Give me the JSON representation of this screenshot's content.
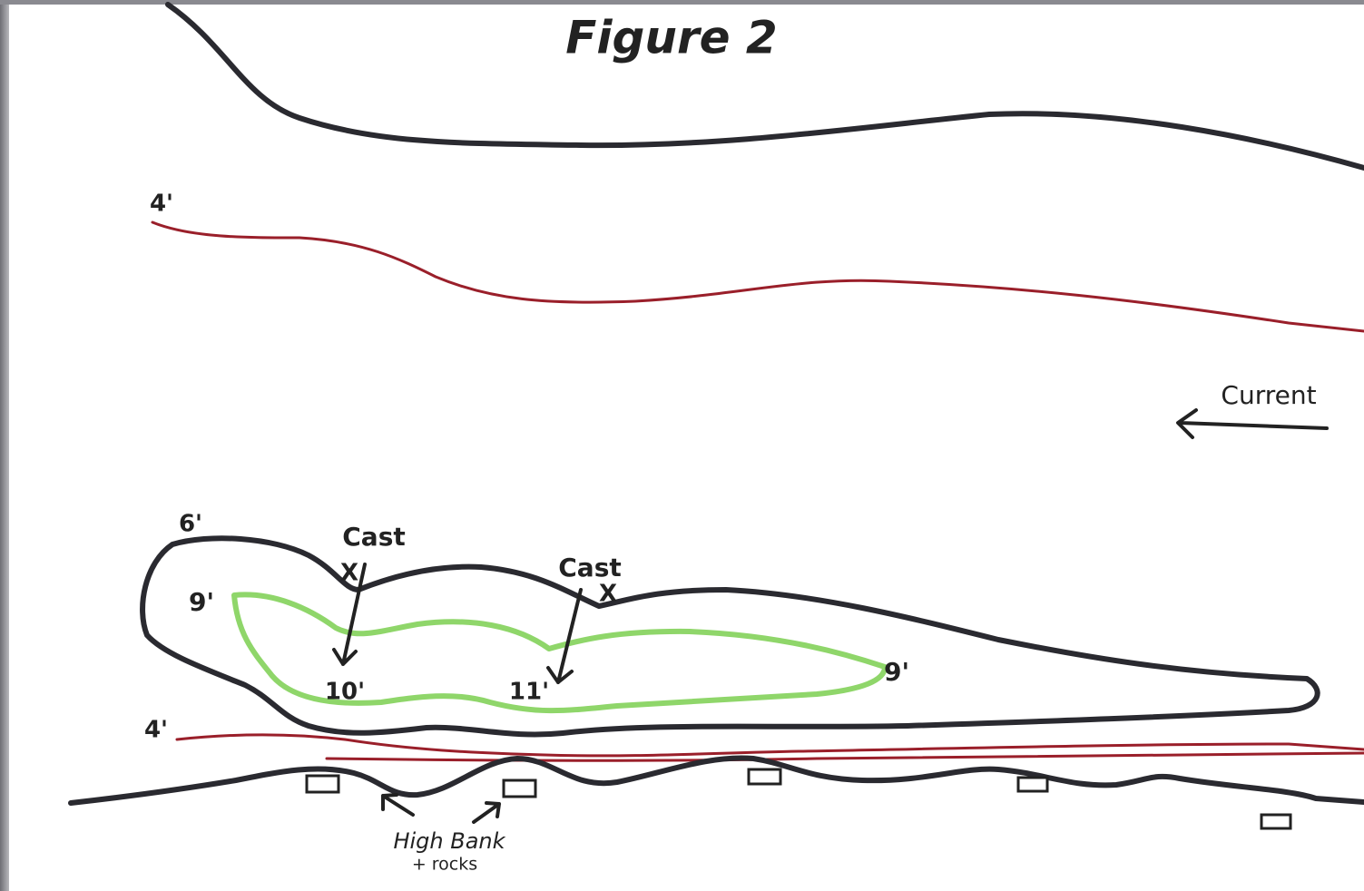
{
  "title": "Figure 2",
  "depth_labels": [
    "4'",
    "4'",
    "6'",
    "9'",
    "9'",
    "10'",
    "11'"
  ],
  "casts": [
    {
      "label": "Cast",
      "mark": "X"
    },
    {
      "label": "Cast",
      "mark": "X"
    }
  ],
  "current": "Current",
  "bank_note": [
    "High Bank",
    "+ rocks"
  ]
}
